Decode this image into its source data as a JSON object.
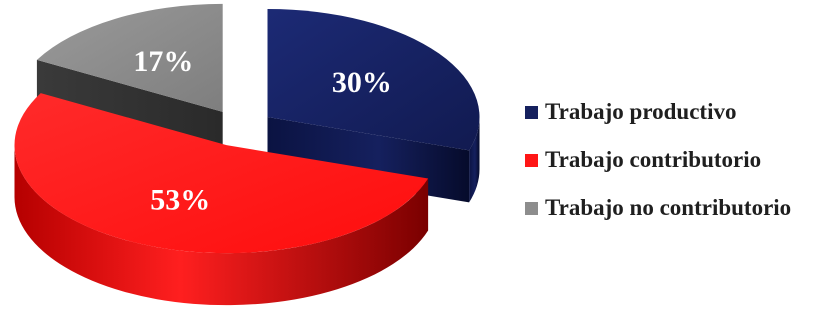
{
  "chart_data": {
    "type": "pie",
    "style": "3d-exploded",
    "categories": [
      "Trabajo productivo",
      "Trabajo contributorio",
      "Trabajo no contributorio"
    ],
    "values": [
      30,
      53,
      17
    ],
    "labels": [
      "30%",
      "53%",
      "17%"
    ],
    "colors": [
      "#15205e",
      "#ff1616",
      "#8d8d8d"
    ],
    "legend_position": "right",
    "title": ""
  }
}
